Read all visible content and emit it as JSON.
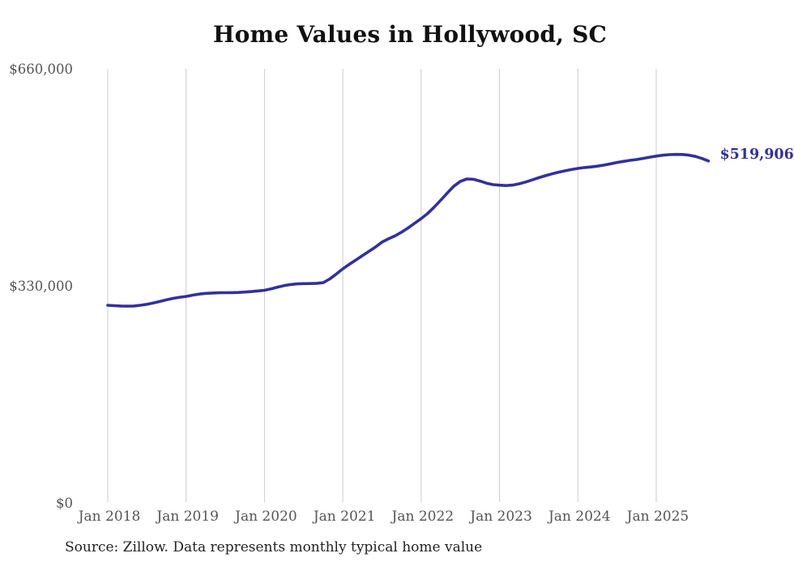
{
  "page": {
    "background_color": "#ffffff"
  },
  "header": {
    "title": "Home Values in Hollywood, SC"
  },
  "footer": {
    "source_note": "Source: Zillow. Data represents monthly typical home value"
  },
  "colors": {
    "line": "#34309c",
    "end_label": "#34309c",
    "grid": "#cccccc",
    "title_text": "#111111",
    "axis_text": "#555555",
    "source_text": "#222222",
    "background": "#ffffff"
  },
  "chart_data": {
    "type": "line",
    "title": "Home Values in Hollywood, SC",
    "xlabel": "",
    "ylabel": "",
    "frequency": "monthly",
    "start_month": "2018-01",
    "end_month": "2025-09",
    "x_tick_labels": [
      "Jan 2018",
      "Jan 2019",
      "Jan 2020",
      "Jan 2021",
      "Jan 2022",
      "Jan 2023",
      "Jan 2024",
      "Jan 2025"
    ],
    "y_tick_labels": [
      "$660,000",
      "$330,000",
      "$0"
    ],
    "y_ticks": [
      660000,
      330000,
      0
    ],
    "ylim": [
      0,
      660000
    ],
    "grid": "vertical-only",
    "legend_position": "none",
    "end_label": "$519,906",
    "last_value": 519906,
    "series": [
      {
        "name": "Typical home value",
        "values": [
          300400,
          299800,
          299300,
          299100,
          299400,
          300400,
          301900,
          304000,
          306400,
          308800,
          310900,
          312600,
          313900,
          315800,
          317400,
          318500,
          319100,
          319400,
          319500,
          319600,
          319900,
          320500,
          321300,
          322200,
          323200,
          325400,
          328000,
          330400,
          332000,
          332900,
          333300,
          333500,
          333800,
          334800,
          340500,
          348000,
          355900,
          362800,
          369300,
          375800,
          382400,
          389000,
          396500,
          401500,
          406000,
          411600,
          418100,
          425200,
          432200,
          440100,
          449800,
          460300,
          471100,
          481400,
          488900,
          492500,
          492000,
          489300,
          486100,
          483900,
          483000,
          482500,
          483200,
          485100,
          487800,
          491000,
          494400,
          497500,
          500200,
          502600,
          504800,
          506800,
          508600,
          509900,
          510800,
          512000,
          513600,
          515600,
          517600,
          519300,
          520800,
          522100,
          523800,
          525600,
          527200,
          528600,
          529500,
          529900,
          529700,
          528700,
          526800,
          523700,
          519906
        ]
      }
    ]
  }
}
